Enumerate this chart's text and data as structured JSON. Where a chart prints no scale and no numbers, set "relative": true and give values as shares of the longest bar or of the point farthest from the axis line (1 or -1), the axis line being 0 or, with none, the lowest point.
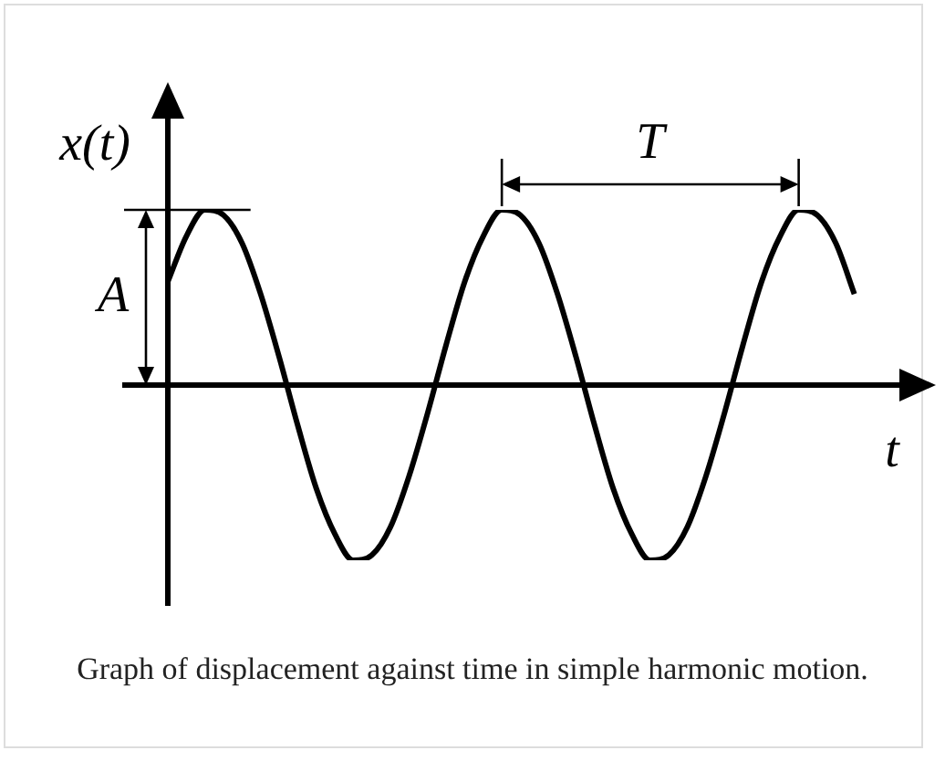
{
  "chart_data": {
    "type": "line",
    "relative": true,
    "xlabel": "t",
    "ylabel": "x(t)",
    "color": "#000000",
    "marker": "none",
    "categories": [
      null,
      null,
      null,
      null,
      null,
      null,
      null,
      null,
      null,
      null,
      null,
      null,
      null,
      null,
      null,
      null,
      null,
      null,
      null,
      null,
      null,
      null,
      null,
      null,
      null,
      null,
      null,
      null,
      null,
      null,
      null,
      null,
      null,
      null,
      null,
      null,
      null,
      null,
      null,
      null,
      null,
      null
    ],
    "values": [
      0.59,
      0.85,
      1,
      0.97,
      0.81,
      0.52,
      0.16,
      -0.23,
      -0.59,
      -0.85,
      -1,
      -0.97,
      -0.81,
      -0.52,
      -0.16,
      0.23,
      0.59,
      0.85,
      1,
      0.97,
      0.81,
      0.52,
      0.16,
      -0.23,
      -0.59,
      -0.85,
      -1,
      -0.97,
      -0.81,
      -0.52,
      -0.16,
      0.23,
      0.59,
      0.85,
      1,
      0.97,
      0.81,
      0.52,
      null,
      null,
      null,
      null
    ],
    "annotations": [
      "A",
      "T",
      "Graph of displacement against time in simple harmonic motion."
    ]
  }
}
